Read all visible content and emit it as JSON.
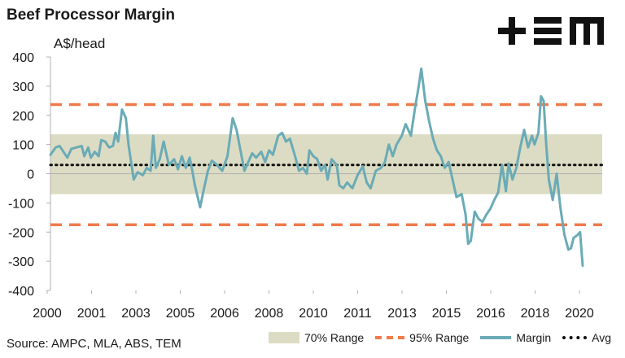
{
  "chart_data": {
    "type": "line",
    "title": "Beef Processor Margin",
    "ylabel": "A$/head",
    "source": "Source: AMPC, MLA, ABS, TEM",
    "ylim": [
      -400,
      400
    ],
    "xlim": [
      2000,
      2021.2
    ],
    "yticks": [
      "400",
      "300",
      "200",
      "100",
      "0",
      "-100",
      "-200",
      "-300",
      "-400"
    ],
    "xticks": [
      "2000",
      "2001",
      "2003",
      "2005",
      "2006",
      "2008",
      "2010",
      "2011",
      "2013",
      "2015",
      "2016",
      "2018",
      "2020"
    ],
    "legend": [
      "70% Range",
      "95% Range",
      "Margin",
      "Avg"
    ],
    "bands": {
      "range70": [
        -70,
        135
      ],
      "range95": [
        -175,
        237
      ],
      "avg": 30
    },
    "colors": {
      "band": "#dcdcc4",
      "range95": "#f07a4a",
      "margin": "#6aabb6",
      "avg": "#111111"
    },
    "series": [
      {
        "name": "Margin",
        "points": [
          [
            2000.0,
            65
          ],
          [
            2000.2,
            90
          ],
          [
            2000.35,
            95
          ],
          [
            2000.5,
            75
          ],
          [
            2000.65,
            55
          ],
          [
            2000.8,
            85
          ],
          [
            2001.0,
            90
          ],
          [
            2001.2,
            95
          ],
          [
            2001.3,
            60
          ],
          [
            2001.45,
            90
          ],
          [
            2001.55,
            55
          ],
          [
            2001.7,
            75
          ],
          [
            2001.85,
            60
          ],
          [
            2001.95,
            115
          ],
          [
            2002.1,
            110
          ],
          [
            2002.25,
            90
          ],
          [
            2002.4,
            95
          ],
          [
            2002.5,
            140
          ],
          [
            2002.6,
            110
          ],
          [
            2002.75,
            220
          ],
          [
            2002.9,
            190
          ],
          [
            2003.0,
            100
          ],
          [
            2003.1,
            40
          ],
          [
            2003.2,
            -20
          ],
          [
            2003.35,
            5
          ],
          [
            2003.55,
            -5
          ],
          [
            2003.7,
            20
          ],
          [
            2003.85,
            10
          ],
          [
            2003.95,
            130
          ],
          [
            2004.05,
            20
          ],
          [
            2004.2,
            50
          ],
          [
            2004.35,
            110
          ],
          [
            2004.45,
            70
          ],
          [
            2004.55,
            30
          ],
          [
            2004.75,
            50
          ],
          [
            2004.9,
            15
          ],
          [
            2005.05,
            60
          ],
          [
            2005.2,
            20
          ],
          [
            2005.35,
            55
          ],
          [
            2005.45,
            10
          ],
          [
            2005.55,
            -40
          ],
          [
            2005.75,
            -115
          ],
          [
            2005.9,
            -50
          ],
          [
            2006.05,
            10
          ],
          [
            2006.2,
            45
          ],
          [
            2006.4,
            30
          ],
          [
            2006.6,
            10
          ],
          [
            2006.8,
            60
          ],
          [
            2007.0,
            190
          ],
          [
            2007.15,
            150
          ],
          [
            2007.3,
            80
          ],
          [
            2007.45,
            10
          ],
          [
            2007.6,
            40
          ],
          [
            2007.75,
            70
          ],
          [
            2007.9,
            55
          ],
          [
            2008.1,
            75
          ],
          [
            2008.25,
            40
          ],
          [
            2008.4,
            80
          ],
          [
            2008.55,
            65
          ],
          [
            2008.75,
            130
          ],
          [
            2008.9,
            140
          ],
          [
            2009.05,
            110
          ],
          [
            2009.2,
            120
          ],
          [
            2009.4,
            60
          ],
          [
            2009.55,
            10
          ],
          [
            2009.7,
            20
          ],
          [
            2009.85,
            0
          ],
          [
            2009.95,
            80
          ],
          [
            2010.1,
            60
          ],
          [
            2010.25,
            50
          ],
          [
            2010.4,
            10
          ],
          [
            2010.55,
            30
          ],
          [
            2010.65,
            -20
          ],
          [
            2010.8,
            50
          ],
          [
            2011.0,
            30
          ],
          [
            2011.1,
            -40
          ],
          [
            2011.25,
            -50
          ],
          [
            2011.4,
            -30
          ],
          [
            2011.6,
            -50
          ],
          [
            2011.8,
            -5
          ],
          [
            2012.0,
            25
          ],
          [
            2012.15,
            -30
          ],
          [
            2012.3,
            -50
          ],
          [
            2012.5,
            10
          ],
          [
            2012.7,
            20
          ],
          [
            2012.85,
            40
          ],
          [
            2013.0,
            100
          ],
          [
            2013.15,
            60
          ],
          [
            2013.3,
            100
          ],
          [
            2013.5,
            130
          ],
          [
            2013.65,
            170
          ],
          [
            2013.85,
            130
          ],
          [
            2014.0,
            220
          ],
          [
            2014.15,
            300
          ],
          [
            2014.25,
            360
          ],
          [
            2014.4,
            250
          ],
          [
            2014.55,
            180
          ],
          [
            2014.7,
            120
          ],
          [
            2014.85,
            80
          ],
          [
            2015.0,
            60
          ],
          [
            2015.15,
            20
          ],
          [
            2015.3,
            40
          ],
          [
            2015.45,
            -20
          ],
          [
            2015.6,
            -80
          ],
          [
            2015.8,
            -70
          ],
          [
            2015.95,
            -140
          ],
          [
            2016.05,
            -240
          ],
          [
            2016.15,
            -230
          ],
          [
            2016.3,
            -130
          ],
          [
            2016.45,
            -155
          ],
          [
            2016.6,
            -165
          ],
          [
            2016.75,
            -140
          ],
          [
            2016.9,
            -120
          ],
          [
            2017.05,
            -90
          ],
          [
            2017.2,
            -65
          ],
          [
            2017.35,
            30
          ],
          [
            2017.5,
            -60
          ],
          [
            2017.6,
            35
          ],
          [
            2017.75,
            -20
          ],
          [
            2017.9,
            20
          ],
          [
            2018.05,
            90
          ],
          [
            2018.2,
            150
          ],
          [
            2018.35,
            90
          ],
          [
            2018.5,
            130
          ],
          [
            2018.6,
            100
          ],
          [
            2018.75,
            140
          ],
          [
            2018.85,
            265
          ],
          [
            2018.95,
            250
          ],
          [
            2019.05,
            100
          ],
          [
            2019.15,
            -20
          ],
          [
            2019.3,
            -90
          ],
          [
            2019.45,
            0
          ],
          [
            2019.6,
            -120
          ],
          [
            2019.75,
            -210
          ],
          [
            2019.9,
            -260
          ],
          [
            2020.0,
            -255
          ],
          [
            2020.1,
            -220
          ],
          [
            2020.25,
            -210
          ],
          [
            2020.35,
            -200
          ],
          [
            2020.45,
            -315
          ]
        ]
      }
    ]
  }
}
